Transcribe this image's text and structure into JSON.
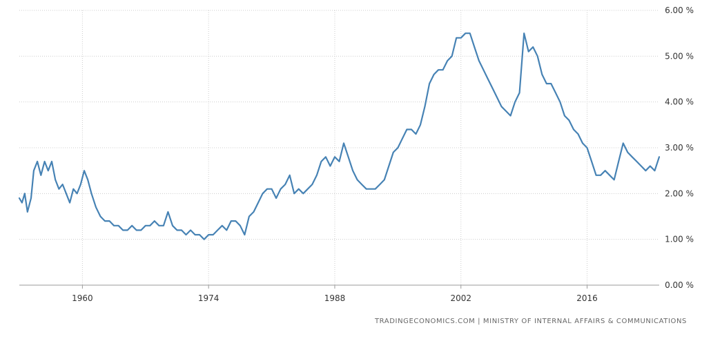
{
  "source": {
    "text": "TRADINGECONOMICS.COM  |  MINISTRY OF INTERNAL AFFAIRS & COMMUNICATIONS"
  },
  "colors": {
    "line": "#4682B4",
    "grid": "#cccccc",
    "axis": "#999999",
    "text": "#333333",
    "background": "#ffffff"
  },
  "chart_data": {
    "type": "line",
    "title": "",
    "xlabel": "",
    "ylabel": "",
    "xlim": [
      1953,
      2024
    ],
    "ylim": [
      0,
      6
    ],
    "grid": true,
    "y_axis_side": "right",
    "legend": "none",
    "x_ticks": [
      {
        "value": 1960,
        "label": "1960"
      },
      {
        "value": 1974,
        "label": "1974"
      },
      {
        "value": 1988,
        "label": "1988"
      },
      {
        "value": 2002,
        "label": "2002"
      },
      {
        "value": 2016,
        "label": "2016"
      }
    ],
    "y_ticks": [
      {
        "value": 0,
        "label": "0.00 %"
      },
      {
        "value": 1,
        "label": "1.00 %"
      },
      {
        "value": 2,
        "label": "2.00 %"
      },
      {
        "value": 3,
        "label": "3.00 %"
      },
      {
        "value": 4,
        "label": "4.00 %"
      },
      {
        "value": 5,
        "label": "5.00 %"
      },
      {
        "value": 6,
        "label": "6.00 %"
      }
    ],
    "series": [
      {
        "x": [
          1953.0,
          1953.3,
          1953.6,
          1953.9,
          1954.3,
          1954.6,
          1955.0,
          1955.4,
          1955.8,
          1956.2,
          1956.6,
          1957.0,
          1957.4,
          1957.8,
          1958.2,
          1958.6,
          1959.0,
          1959.4,
          1959.8,
          1960.2,
          1960.6,
          1961.0,
          1961.5,
          1962.0,
          1962.5,
          1963.0,
          1963.5,
          1964.0,
          1964.5,
          1965.0,
          1965.5,
          1966.0,
          1966.5,
          1967.0,
          1967.5,
          1968.0,
          1968.5,
          1969.0,
          1969.5,
          1970.0,
          1970.5,
          1971.0,
          1971.5,
          1972.0,
          1972.5,
          1973.0,
          1973.5,
          1974.0,
          1974.5,
          1975.0,
          1975.5,
          1976.0,
          1976.5,
          1977.0,
          1977.5,
          1978.0,
          1978.5,
          1979.0,
          1979.5,
          1980.0,
          1980.5,
          1981.0,
          1981.5,
          1982.0,
          1982.5,
          1983.0,
          1983.5,
          1984.0,
          1984.5,
          1985.0,
          1985.5,
          1986.0,
          1986.5,
          1987.0,
          1987.5,
          1988.0,
          1988.5,
          1989.0,
          1989.5,
          1990.0,
          1990.5,
          1991.0,
          1991.5,
          1992.0,
          1992.5,
          1993.0,
          1993.5,
          1994.0,
          1994.5,
          1995.0,
          1995.5,
          1996.0,
          1996.5,
          1997.0,
          1997.5,
          1998.0,
          1998.5,
          1999.0,
          1999.5,
          2000.0,
          2000.5,
          2001.0,
          2001.5,
          2002.0,
          2002.5,
          2003.0,
          2003.5,
          2004.0,
          2004.5,
          2005.0,
          2005.5,
          2006.0,
          2006.5,
          2007.0,
          2007.5,
          2008.0,
          2008.5,
          2009.0,
          2009.5,
          2010.0,
          2010.5,
          2011.0,
          2011.5,
          2012.0,
          2012.5,
          2013.0,
          2013.5,
          2014.0,
          2014.5,
          2015.0,
          2015.5,
          2016.0,
          2016.5,
          2017.0,
          2017.5,
          2018.0,
          2018.5,
          2019.0,
          2019.5,
          2020.0,
          2020.5,
          2021.0,
          2021.5,
          2022.0,
          2022.5,
          2023.0,
          2023.5,
          2024.0
        ],
        "values": [
          1.9,
          1.8,
          2.0,
          1.6,
          1.9,
          2.5,
          2.7,
          2.4,
          2.7,
          2.5,
          2.7,
          2.3,
          2.1,
          2.2,
          2.0,
          1.8,
          2.1,
          2.0,
          2.2,
          2.5,
          2.3,
          2.0,
          1.7,
          1.5,
          1.4,
          1.4,
          1.3,
          1.3,
          1.2,
          1.2,
          1.3,
          1.2,
          1.2,
          1.3,
          1.3,
          1.4,
          1.3,
          1.3,
          1.6,
          1.3,
          1.2,
          1.2,
          1.1,
          1.2,
          1.1,
          1.1,
          1.0,
          1.1,
          1.1,
          1.2,
          1.3,
          1.2,
          1.4,
          1.4,
          1.3,
          1.1,
          1.5,
          1.6,
          1.8,
          2.0,
          2.1,
          2.1,
          1.9,
          2.1,
          2.2,
          2.4,
          2.0,
          2.1,
          2.0,
          2.1,
          2.2,
          2.4,
          2.7,
          2.8,
          2.6,
          2.8,
          2.7,
          3.1,
          2.8,
          2.5,
          2.3,
          2.2,
          2.1,
          2.1,
          2.1,
          2.2,
          2.3,
          2.6,
          2.9,
          3.0,
          3.2,
          3.4,
          3.4,
          3.3,
          3.5,
          3.9,
          4.4,
          4.6,
          4.7,
          4.7,
          4.9,
          5.0,
          5.4,
          5.4,
          5.5,
          5.5,
          5.2,
          4.9,
          4.7,
          4.5,
          4.3,
          4.1,
          3.9,
          3.8,
          3.7,
          4.0,
          4.2,
          5.5,
          5.1,
          5.2,
          5.0,
          4.6,
          4.4,
          4.4,
          4.2,
          4.0,
          3.7,
          3.6,
          3.4,
          3.3,
          3.1,
          3.0,
          2.7,
          2.4,
          2.4,
          2.5,
          2.4,
          2.3,
          2.7,
          3.1,
          2.9,
          2.8,
          2.7,
          2.6,
          2.5,
          2.6,
          2.5,
          2.8
        ]
      }
    ]
  }
}
